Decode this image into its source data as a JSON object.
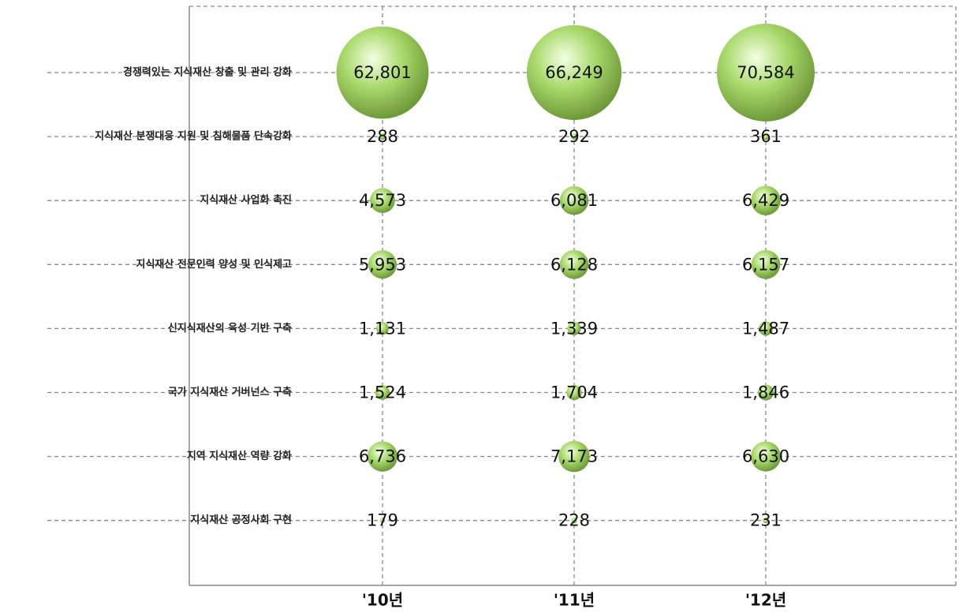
{
  "chart_data": {
    "type": "bubble",
    "categories": [
      "경쟁력있는 지식재산 창출 및 관리 강화",
      "지식재산 분쟁대응 지원 및 침해물품 단속강화",
      "지식재산 사업화 촉진",
      "지식재산 전문인력 양성 및 인식제고",
      "신지식재산의 육성 기반 구축",
      "국가 지식재산 거버넌스 구축",
      "지역 지식재산 역량 강화",
      "지식재산 공정사회 구현"
    ],
    "x": [
      "'10년",
      "'11년",
      "'12년"
    ],
    "values": [
      [
        62801,
        66249,
        70584
      ],
      [
        288,
        292,
        361
      ],
      [
        4573,
        6081,
        6429
      ],
      [
        5953,
        6128,
        6157
      ],
      [
        1131,
        1339,
        1487
      ],
      [
        1524,
        1704,
        1846
      ],
      [
        6736,
        7173,
        6630
      ],
      [
        179,
        228,
        231
      ]
    ],
    "value_labels": [
      [
        "62,801",
        "66,249",
        "70,584"
      ],
      [
        "288",
        "292",
        "361"
      ],
      [
        "4,573",
        "6,081",
        "6,429"
      ],
      [
        "5,953",
        "6,128",
        "6,157"
      ],
      [
        "1,131",
        "1,339",
        "1,487"
      ],
      [
        "1,524",
        "1,704",
        "1,846"
      ],
      [
        "6,736",
        "7,173",
        "6,630"
      ],
      [
        "179",
        "228",
        "231"
      ]
    ],
    "color": "#a8d86a",
    "grid": true
  }
}
